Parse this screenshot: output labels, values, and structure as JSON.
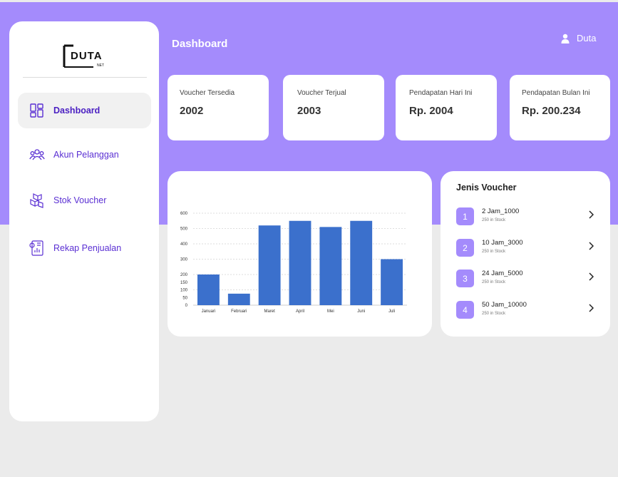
{
  "brand": {
    "logo_text": "DUTA",
    "logo_sub": "NET"
  },
  "sidebar": {
    "items": [
      {
        "label": "Dashboard",
        "icon": "dashboard-grid-icon",
        "active": true
      },
      {
        "label": "Akun Pelanggan",
        "icon": "users-icon"
      },
      {
        "label": "Stok Voucher",
        "icon": "boxes-icon"
      },
      {
        "label": "Rekap Penjualan",
        "icon": "report-icon"
      }
    ]
  },
  "header": {
    "title": "Dashboard",
    "user_name": "Duta",
    "user_icon": "user-icon"
  },
  "stats": [
    {
      "label": "Voucher Tersedia",
      "value": "2002"
    },
    {
      "label": "Voucher Terjual",
      "value": "2003"
    },
    {
      "label": "Pendapatan Hari Ini",
      "value": "Rp. 2004"
    },
    {
      "label": "Pendapatan Bulan Ini",
      "value": "Rp. 200.234"
    }
  ],
  "chart_data": {
    "type": "bar",
    "categories": [
      "Januari",
      "Februari",
      "Maret",
      "April",
      "Mei",
      "Juni",
      "Juli"
    ],
    "values": [
      200,
      75,
      520,
      550,
      510,
      550,
      300
    ],
    "yticks": [
      0,
      50,
      100,
      150,
      200,
      300,
      400,
      500,
      600
    ],
    "ylim": [
      0,
      600
    ],
    "bar_color": "#3b70cc",
    "grid": true
  },
  "vouchers": {
    "title": "Jenis Voucher",
    "items": [
      {
        "num": "1",
        "name": "2 Jam_1000",
        "stock": "250 in Stock"
      },
      {
        "num": "2",
        "name": "10 Jam_3000",
        "stock": "250 in Stock"
      },
      {
        "num": "3",
        "name": "24 Jam_5000",
        "stock": "250 in Stock"
      },
      {
        "num": "4",
        "name": "50 Jam_10000",
        "stock": "250 in Stock"
      }
    ]
  },
  "colors": {
    "accent": "#a48bfc",
    "nav_text": "#5a2fd3",
    "background": "#ebebeb"
  }
}
